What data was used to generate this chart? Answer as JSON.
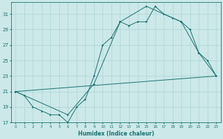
{
  "xlabel": "Humidex (Indice chaleur)",
  "bg_color": "#cce8e8",
  "line_color": "#1a7070",
  "grid_color": "#aad4d4",
  "xlim": [
    -0.5,
    23.5
  ],
  "ylim": [
    17,
    32.5
  ],
  "xticks": [
    0,
    1,
    2,
    3,
    4,
    5,
    6,
    7,
    8,
    9,
    10,
    11,
    12,
    13,
    14,
    15,
    16,
    17,
    18,
    19,
    20,
    21,
    22,
    23
  ],
  "yticks": [
    17,
    19,
    21,
    23,
    25,
    27,
    29,
    31
  ],
  "line1_x": [
    0,
    1,
    2,
    3,
    4,
    5,
    6,
    7,
    8,
    9,
    10,
    11,
    12,
    13,
    14,
    15,
    16,
    17,
    18,
    19,
    20,
    21,
    22,
    23
  ],
  "line1_y": [
    21,
    20.5,
    19,
    18.5,
    18,
    18,
    17,
    19,
    20,
    23,
    27,
    28,
    30,
    29.5,
    30,
    30,
    32,
    31,
    30.5,
    30,
    29,
    26,
    25,
    23
  ],
  "line2_x": [
    0,
    6,
    9,
    12,
    15,
    19,
    21,
    23
  ],
  "line2_y": [
    21,
    18,
    22,
    30,
    32,
    30,
    26,
    23
  ],
  "line3_x": [
    0,
    23
  ],
  "line3_y": [
    21,
    23
  ]
}
